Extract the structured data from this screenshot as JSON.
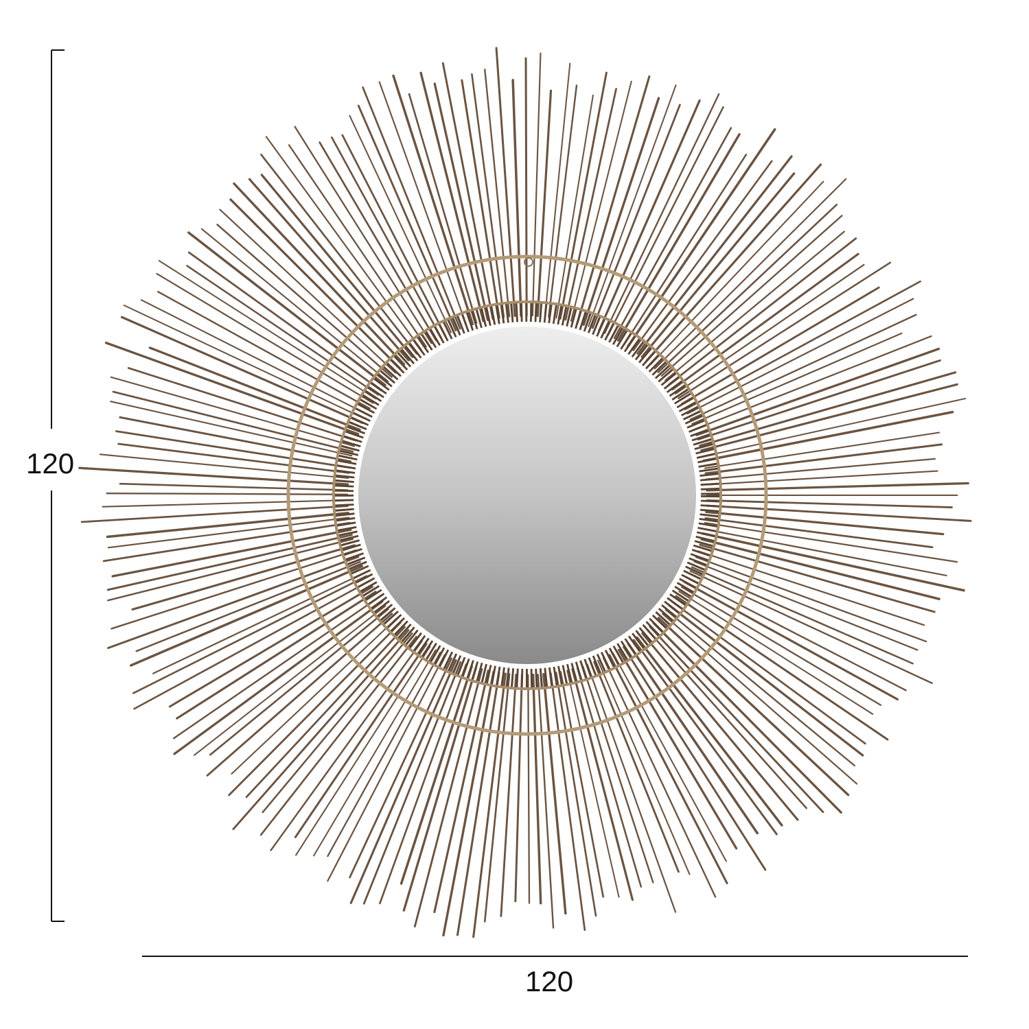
{
  "dimensions": {
    "height_label": "120",
    "width_label": "120"
  },
  "product": {
    "name_icon": "sunburst-mirror",
    "colors": {
      "rays": "#6b5442",
      "ring": "#b49b78",
      "glass_light": "#ececec",
      "glass_dark": "#8c8c8c",
      "dimension_lines": "#111111"
    }
  }
}
